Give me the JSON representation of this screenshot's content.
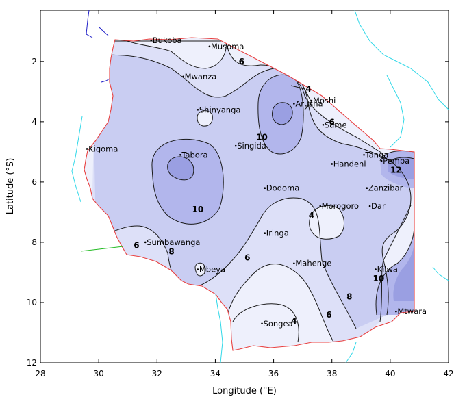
{
  "axes": {
    "x_title": "Longitude (°E)",
    "y_title": "Latitude (°S)",
    "x_ticks": [
      "28",
      "30",
      "32",
      "34",
      "36",
      "38",
      "40",
      "42"
    ],
    "y_ticks": [
      "2",
      "4",
      "6",
      "8",
      "10",
      "12"
    ]
  },
  "map": {
    "lon_range": [
      28,
      42
    ],
    "lat_range": [
      0.3,
      12
    ],
    "fill_colors": {
      "level_4": "#eef0fc",
      "level_6": "#dde0f8",
      "level_8": "#c9cdf2",
      "level_10": "#b2b6ec",
      "level_12": "#9a9fe2",
      "coastline": "#e84040",
      "rivers_lakes_inland": "#2020c8",
      "ocean_coast": "#30d8e8"
    },
    "cities": [
      {
        "name": "Bukoba",
        "lon": 31.8,
        "lat": 1.3
      },
      {
        "name": "Musoma",
        "lon": 33.8,
        "lat": 1.5
      },
      {
        "name": "Mwanza",
        "lon": 32.9,
        "lat": 2.5
      },
      {
        "name": "Shinyanga",
        "lon": 33.4,
        "lat": 3.6
      },
      {
        "name": "Arusha",
        "lon": 36.7,
        "lat": 3.4
      },
      {
        "name": "Moshi",
        "lon": 37.3,
        "lat": 3.3
      },
      {
        "name": "Same",
        "lon": 37.7,
        "lat": 4.1
      },
      {
        "name": "Kigoma",
        "lon": 29.6,
        "lat": 4.9
      },
      {
        "name": "Singida",
        "lon": 34.7,
        "lat": 4.8
      },
      {
        "name": "Tabora",
        "lon": 32.8,
        "lat": 5.1
      },
      {
        "name": "Tanga",
        "lon": 39.1,
        "lat": 5.1
      },
      {
        "name": "Handeni",
        "lon": 38.0,
        "lat": 5.4
      },
      {
        "name": "Pemba",
        "lon": 39.7,
        "lat": 5.3
      },
      {
        "name": "Dodoma",
        "lon": 35.7,
        "lat": 6.2
      },
      {
        "name": "Zanzibar",
        "lon": 39.2,
        "lat": 6.2
      },
      {
        "name": "Morogoro",
        "lon": 37.6,
        "lat": 6.8
      },
      {
        "name": "Dar",
        "lon": 39.3,
        "lat": 6.8
      },
      {
        "name": "Iringa",
        "lon": 35.7,
        "lat": 7.7
      },
      {
        "name": "Sumbawanga",
        "lon": 31.6,
        "lat": 8.0
      },
      {
        "name": "Mbeya",
        "lon": 33.4,
        "lat": 8.9
      },
      {
        "name": "Mahenge",
        "lon": 36.7,
        "lat": 8.7
      },
      {
        "name": "Kilwa",
        "lon": 39.5,
        "lat": 8.9
      },
      {
        "name": "Mtwara",
        "lon": 40.2,
        "lat": 10.3
      },
      {
        "name": "Songea",
        "lon": 35.6,
        "lat": 10.7
      }
    ],
    "contour_labels": [
      {
        "text": "6",
        "lon": 34.9,
        "lat": 2.1
      },
      {
        "text": "4",
        "lon": 37.2,
        "lat": 3.0
      },
      {
        "text": "6",
        "lon": 38.0,
        "lat": 4.1
      },
      {
        "text": "10",
        "lon": 35.6,
        "lat": 4.6
      },
      {
        "text": "12",
        "lon": 40.2,
        "lat": 5.7
      },
      {
        "text": "10",
        "lon": 33.4,
        "lat": 7.0
      },
      {
        "text": "4",
        "lon": 37.3,
        "lat": 7.2
      },
      {
        "text": "6",
        "lon": 31.3,
        "lat": 8.2
      },
      {
        "text": "8",
        "lon": 32.5,
        "lat": 8.4
      },
      {
        "text": "6",
        "lon": 35.1,
        "lat": 8.6
      },
      {
        "text": "10",
        "lon": 39.6,
        "lat": 9.3
      },
      {
        "text": "8",
        "lon": 38.6,
        "lat": 9.9
      },
      {
        "text": "6",
        "lon": 37.9,
        "lat": 10.5
      },
      {
        "text": "4",
        "lon": 36.7,
        "lat": 10.7
      }
    ]
  }
}
